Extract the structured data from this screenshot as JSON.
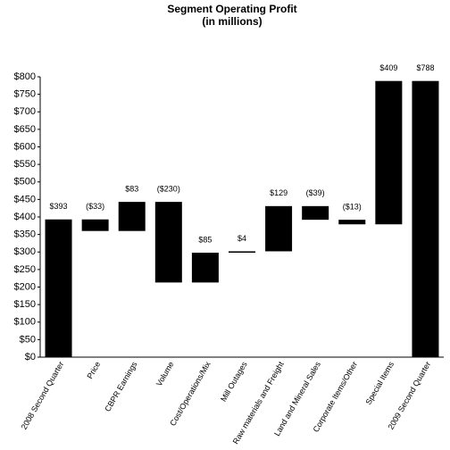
{
  "chart_data": {
    "type": "waterfall",
    "title": "Segment Operating Profit",
    "subtitle": "(in millions)",
    "categories": [
      "2008 Second Quarter",
      "Price",
      "CBPR Earnings",
      "Volume",
      "Cost/Operations/Mix",
      "Mill Outages",
      "Raw materials and Freight",
      "Land and Mineral Sales",
      "Corporate Items/Other",
      "Special Items",
      "2009 Second Quarter"
    ],
    "values": [
      393,
      -33,
      83,
      -230,
      85,
      4,
      129,
      -39,
      -13,
      409,
      788
    ],
    "value_labels": [
      "$393",
      "($33)",
      "$83",
      "($230)",
      "$85",
      "$4",
      "$129",
      "($39)",
      "($13)",
      "$409",
      "$788"
    ],
    "color": "#000000",
    "ylim": [
      0,
      800
    ],
    "yticks": [
      {
        "value": 0,
        "label": "$0"
      },
      {
        "value": 50,
        "label": "$50"
      },
      {
        "value": 100,
        "label": "$100"
      },
      {
        "value": 150,
        "label": "$150"
      },
      {
        "value": 200,
        "label": "$200"
      },
      {
        "value": 250,
        "label": "$250"
      },
      {
        "value": 300,
        "label": "$300"
      },
      {
        "value": 350,
        "label": "$350"
      },
      {
        "value": 400,
        "label": "$400"
      },
      {
        "value": 450,
        "label": "$450"
      },
      {
        "value": 500,
        "label": "$500"
      },
      {
        "value": 550,
        "label": "$550"
      },
      {
        "value": 600,
        "label": "$600"
      },
      {
        "value": 650,
        "label": "$650"
      },
      {
        "value": 700,
        "label": "$700"
      },
      {
        "value": 750,
        "label": "$750"
      },
      {
        "value": 800,
        "label": "$800"
      }
    ],
    "grid": false
  }
}
